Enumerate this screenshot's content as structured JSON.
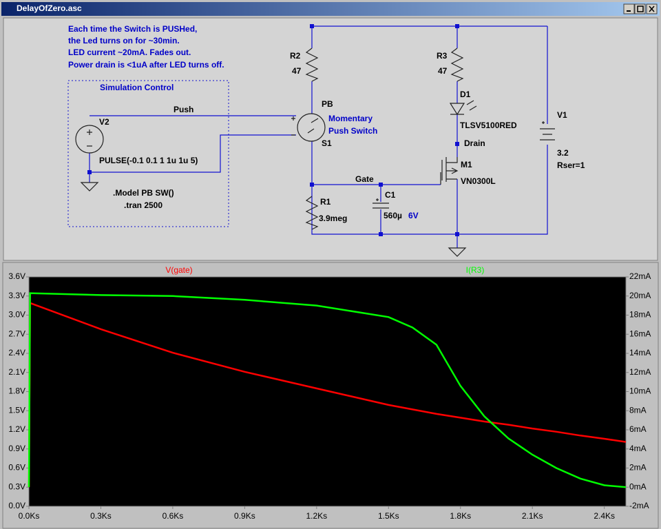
{
  "window": {
    "title": "DelayOfZero.asc"
  },
  "schematic": {
    "notes": [
      "Each time the Switch is PUSHed,",
      "the Led turns on for ~30min.",
      "LED current ~20mA. Fades out.",
      "Power drain is <1uA after LED turns off."
    ],
    "simulation_control": "Simulation Control",
    "directives": [
      ".Model PB SW()",
      ".tran 2500"
    ],
    "nets": {
      "push": "Push",
      "gate": "Gate",
      "drain": "Drain"
    },
    "components": {
      "R2": {
        "ref": "R2",
        "value": "47"
      },
      "R3": {
        "ref": "R3",
        "value": "47"
      },
      "R1": {
        "ref": "R1",
        "value": "3.9meg"
      },
      "D1": {
        "ref": "D1",
        "value": "TLSV5100RED"
      },
      "V1": {
        "ref": "V1",
        "value": "3.2",
        "extra": "Rser=1"
      },
      "V2": {
        "ref": "V2",
        "value": "PULSE(-0.1 0.1 1 1u 1u 5)"
      },
      "S1": {
        "label": "PB",
        "ref": "S1",
        "description": [
          "Momentary",
          "Push Switch"
        ]
      },
      "M1": {
        "ref": "M1",
        "value": "VN0300L"
      },
      "C1": {
        "ref": "C1",
        "value": "560µ",
        "rating": "6V"
      }
    }
  },
  "chart_data": {
    "type": "line",
    "x": [
      0,
      0.005,
      0.3,
      0.6,
      0.9,
      1.2,
      1.5,
      1.6,
      1.7,
      1.8,
      1.9,
      2.0,
      2.1,
      2.2,
      2.3,
      2.4,
      2.49
    ],
    "series": [
      {
        "name": "V(gate)",
        "color": "#ff0000",
        "values": [
          0.3,
          3.19,
          2.78,
          2.41,
          2.11,
          1.85,
          1.59,
          1.52,
          1.45,
          1.39,
          1.33,
          1.28,
          1.22,
          1.17,
          1.11,
          1.06,
          1.01
        ]
      },
      {
        "name": "I(R3)",
        "color": "#00ff00",
        "axis": "y2",
        "values": [
          0,
          20.3,
          20.1,
          20.0,
          19.6,
          19.0,
          17.8,
          16.7,
          14.9,
          10.6,
          7.4,
          5.1,
          3.4,
          2.0,
          0.9,
          0.2,
          0.0
        ]
      }
    ],
    "xlim": [
      0,
      2.49
    ],
    "xticks": [
      {
        "value": 0,
        "label": "0.0Ks"
      },
      {
        "value": 0.3,
        "label": "0.3Ks"
      },
      {
        "value": 0.6,
        "label": "0.6Ks"
      },
      {
        "value": 0.9,
        "label": "0.9Ks"
      },
      {
        "value": 1.2,
        "label": "1.2Ks"
      },
      {
        "value": 1.5,
        "label": "1.5Ks"
      },
      {
        "value": 1.8,
        "label": "1.8Ks"
      },
      {
        "value": 2.1,
        "label": "2.1Ks"
      },
      {
        "value": 2.4,
        "label": "2.4Ks"
      }
    ],
    "ylim": [
      0,
      3.6
    ],
    "yticks": [
      {
        "value": 0,
        "label": "0.0V"
      },
      {
        "value": 0.3,
        "label": "0.3V"
      },
      {
        "value": 0.6,
        "label": "0.6V"
      },
      {
        "value": 0.9,
        "label": "0.9V"
      },
      {
        "value": 1.2,
        "label": "1.2V"
      },
      {
        "value": 1.5,
        "label": "1.5V"
      },
      {
        "value": 1.8,
        "label": "1.8V"
      },
      {
        "value": 2.1,
        "label": "2.1V"
      },
      {
        "value": 2.4,
        "label": "2.4V"
      },
      {
        "value": 2.7,
        "label": "2.7V"
      },
      {
        "value": 3.0,
        "label": "3.0V"
      },
      {
        "value": 3.3,
        "label": "3.3V"
      },
      {
        "value": 3.6,
        "label": "3.6V"
      }
    ],
    "y2lim": [
      -2,
      22
    ],
    "y2ticks": [
      {
        "value": -2,
        "label": "-2mA"
      },
      {
        "value": 0,
        "label": "0mA"
      },
      {
        "value": 2,
        "label": "2mA"
      },
      {
        "value": 4,
        "label": "4mA"
      },
      {
        "value": 6,
        "label": "6mA"
      },
      {
        "value": 8,
        "label": "8mA"
      },
      {
        "value": 10,
        "label": "10mA"
      },
      {
        "value": 12,
        "label": "12mA"
      },
      {
        "value": 14,
        "label": "14mA"
      },
      {
        "value": 16,
        "label": "16mA"
      },
      {
        "value": 18,
        "label": "18mA"
      },
      {
        "value": 20,
        "label": "20mA"
      },
      {
        "value": 22,
        "label": "22mA"
      }
    ],
    "grid": false
  }
}
